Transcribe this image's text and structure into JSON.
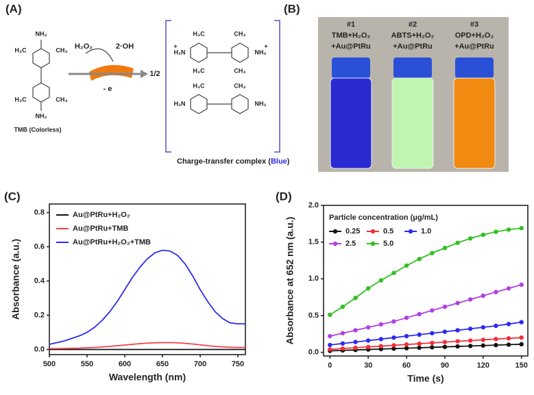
{
  "panel_a": {
    "label": "(A)",
    "tmb_caption": "TMB (Colorless)",
    "reagent": "H₂O₂",
    "product": "2·OH",
    "electron": "- e",
    "ratio": "1/2",
    "complex_caption": "Charge-transfer complex (",
    "complex_color": "Blue",
    "complex_close": ")",
    "atoms": [
      "NH₂",
      "H₃C",
      "CH₃",
      "H₃C",
      "CH₃",
      "NH₂",
      "H₃C",
      "CH₃",
      "H₂N",
      "NH₂",
      "H₃C",
      "CH₃",
      "H₃C",
      "CH₃",
      "H₂N",
      "NH₂",
      "+",
      "+"
    ]
  },
  "panel_b": {
    "label": "(B)",
    "vials": [
      {
        "number": "#1",
        "line1": "TMB+H₂O₂",
        "line2": "+Au@PtRu",
        "color": "#2a2ad0"
      },
      {
        "number": "#2",
        "line1": "ABTS+H₂O₂",
        "line2": "+Au@PtRu",
        "color": "#bff5b0"
      },
      {
        "number": "#3",
        "line1": "OPD+H₂O₂",
        "line2": "+Au@PtRu",
        "color": "#f08a10"
      }
    ]
  },
  "chart_data": [
    {
      "type": "line",
      "panel_label": "(C)",
      "x_label": "Wavelength (nm)",
      "y_label": "Absorbance (a.u.)",
      "legend": "upper left",
      "markers": false,
      "x": [
        500,
        510,
        520,
        530,
        540,
        550,
        560,
        570,
        580,
        590,
        600,
        610,
        620,
        630,
        640,
        650,
        660,
        670,
        680,
        690,
        700,
        710,
        720,
        730,
        740,
        750,
        760
      ],
      "xlim": [
        500,
        760
      ],
      "xticks": [
        500,
        550,
        600,
        650,
        700,
        750
      ],
      "ylim": [
        -0.03,
        0.85
      ],
      "yticks": [
        {
          "value": 0,
          "label": "0.0"
        },
        0.2,
        0.4,
        0.6,
        0.8
      ],
      "series": [
        {
          "name": "Au@PtRu+H₂O₂",
          "color": "#111111",
          "values": [
            0,
            0,
            0,
            0,
            0,
            0,
            0,
            0,
            0,
            0,
            0,
            0,
            0,
            0,
            0,
            0,
            0,
            0,
            0,
            0,
            0,
            0,
            0,
            0,
            0,
            0,
            0
          ]
        },
        {
          "name": "Au@PtRu+TMB",
          "color": "#f0404a",
          "values": [
            0.005,
            0.005,
            0.006,
            0.007,
            0.008,
            0.01,
            0.012,
            0.015,
            0.018,
            0.022,
            0.026,
            0.03,
            0.034,
            0.037,
            0.039,
            0.04,
            0.04,
            0.039,
            0.036,
            0.032,
            0.027,
            0.022,
            0.018,
            0.015,
            0.013,
            0.012,
            0.012
          ]
        },
        {
          "name": "Au@PtRu+H₂O₂+TMB",
          "color": "#2b2bf0",
          "values": [
            0.03,
            0.04,
            0.05,
            0.065,
            0.08,
            0.1,
            0.13,
            0.17,
            0.22,
            0.28,
            0.35,
            0.42,
            0.48,
            0.53,
            0.565,
            0.58,
            0.575,
            0.55,
            0.5,
            0.43,
            0.35,
            0.28,
            0.22,
            0.18,
            0.155,
            0.15,
            0.15
          ]
        }
      ]
    },
    {
      "type": "line",
      "panel_label": "(D)",
      "x_label": "Time (s)",
      "y_label": "Absorbance at 652 nm (a.u.)",
      "legend": "upper left",
      "legend_title": "Particle concentration  (μg/mL)",
      "markers": true,
      "x": [
        0,
        10,
        20,
        30,
        40,
        50,
        60,
        70,
        80,
        90,
        100,
        110,
        120,
        130,
        140,
        150
      ],
      "xlim": [
        -5,
        155
      ],
      "xticks": [
        0,
        30,
        60,
        90,
        120,
        150
      ],
      "ylim": [
        -0.05,
        2.0
      ],
      "yticks": [
        {
          "value": 0,
          "label": "0.0"
        },
        0.5,
        {
          "value": 1,
          "label": "1.0"
        },
        1.5,
        {
          "value": 2,
          "label": "2.0"
        }
      ],
      "series": [
        {
          "name": "0.25",
          "color": "#111111",
          "values": [
            0.02,
            0.026,
            0.032,
            0.038,
            0.044,
            0.05,
            0.056,
            0.062,
            0.068,
            0.074,
            0.08,
            0.086,
            0.092,
            0.098,
            0.104,
            0.11
          ]
        },
        {
          "name": "0.5",
          "color": "#f0303a",
          "values": [
            0.04,
            0.051,
            0.062,
            0.073,
            0.084,
            0.095,
            0.106,
            0.117,
            0.128,
            0.139,
            0.15,
            0.16,
            0.17,
            0.18,
            0.19,
            0.2
          ]
        },
        {
          "name": "1.0",
          "color": "#2b2bf0",
          "values": [
            0.1,
            0.12,
            0.14,
            0.16,
            0.18,
            0.2,
            0.22,
            0.24,
            0.26,
            0.28,
            0.3,
            0.32,
            0.34,
            0.36,
            0.385,
            0.41
          ]
        },
        {
          "name": "2.5",
          "color": "#b040e0",
          "values": [
            0.22,
            0.26,
            0.3,
            0.34,
            0.38,
            0.42,
            0.47,
            0.52,
            0.57,
            0.62,
            0.67,
            0.72,
            0.77,
            0.82,
            0.87,
            0.92
          ]
        },
        {
          "name": "5.0",
          "color": "#30c020",
          "values": [
            0.51,
            0.62,
            0.74,
            0.87,
            0.98,
            1.08,
            1.18,
            1.27,
            1.35,
            1.42,
            1.49,
            1.55,
            1.6,
            1.64,
            1.67,
            1.69
          ]
        }
      ]
    }
  ]
}
